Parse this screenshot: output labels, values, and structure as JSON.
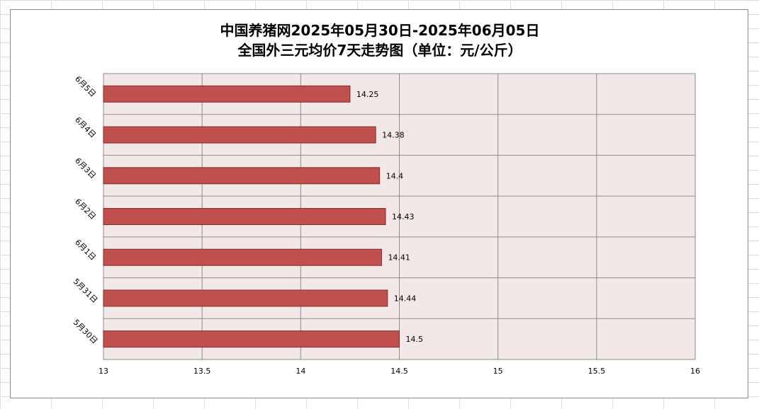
{
  "chart_data": {
    "type": "bar",
    "orientation": "horizontal",
    "title_line1": "中国养猪网2025年05月30日-2025年06月05日",
    "title_line2": "全国外三元均价7天走势图（单位：元/公斤）",
    "categories": [
      "6月5日",
      "6月4日",
      "6月3日",
      "6月2日",
      "6月1日",
      "5月31日",
      "5月30日"
    ],
    "values": [
      14.25,
      14.38,
      14.4,
      14.43,
      14.41,
      14.44,
      14.5
    ],
    "value_labels": [
      "14.25",
      "14.38",
      "14.4",
      "14.43",
      "14.41",
      "14.44",
      "14.5"
    ],
    "xlim": [
      13,
      16
    ],
    "xticks": [
      "13",
      "13.5",
      "14",
      "14.5",
      "15",
      "15.5",
      "16"
    ],
    "xtick_values": [
      13,
      13.5,
      14,
      14.5,
      15,
      15.5,
      16
    ],
    "grid": true,
    "legend": "none",
    "bar_color": "#c0504d",
    "plot_background": "#f2e8e8"
  }
}
